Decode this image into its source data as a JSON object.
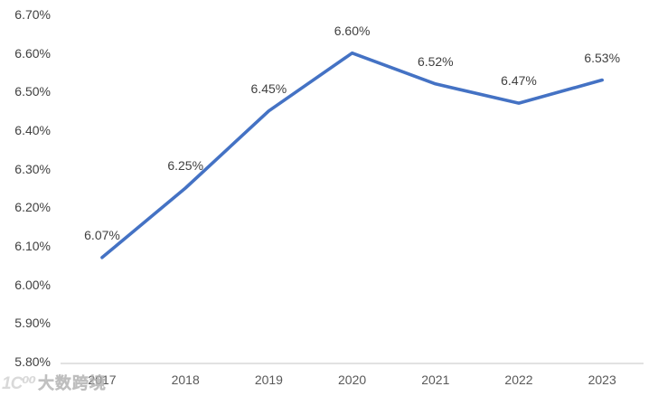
{
  "chart_data": {
    "type": "line",
    "title": "",
    "categories": [
      "2017",
      "2018",
      "2019",
      "2020",
      "2021",
      "2022",
      "2023"
    ],
    "values": [
      6.07,
      6.25,
      6.45,
      6.6,
      6.52,
      6.47,
      6.53
    ],
    "data_labels": [
      "6.07%",
      "6.25%",
      "6.45%",
      "6.60%",
      "6.52%",
      "6.47%",
      "6.53%"
    ],
    "yticks": [
      "6.70%",
      "6.60%",
      "6.50%",
      "6.40%",
      "6.30%",
      "6.20%",
      "6.10%",
      "6.00%",
      "5.90%",
      "5.80%"
    ],
    "ytick_values": [
      6.7,
      6.6,
      6.5,
      6.4,
      6.3,
      6.2,
      6.1,
      6.0,
      5.9,
      5.8
    ],
    "ylim": [
      5.8,
      6.7
    ],
    "xlabel": "",
    "ylabel": "",
    "grid": "off",
    "legend": "none",
    "line_color": "#4472C4",
    "axis_line_color": "#d9d9d9",
    "data_label_color": "#3f3f3f",
    "ytick_color": "#404040",
    "xtick_color": "#595959"
  },
  "watermark": {
    "logo": "1C⁰⁰",
    "text": "大数跨境"
  }
}
